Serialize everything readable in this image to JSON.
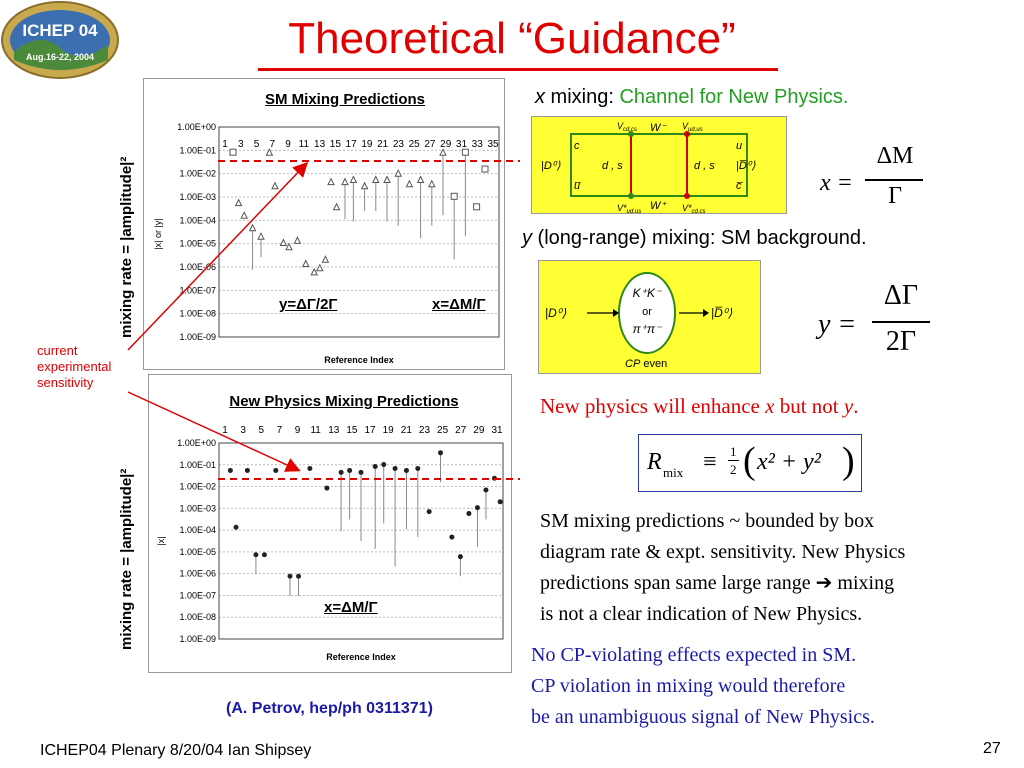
{
  "slide": {
    "title": "Theoretical “Guidance”",
    "logo_text": "ICHEP 04",
    "logo_date": "Aug.16-22, 2004",
    "footer_left": "ICHEP04 Plenary 8/20/04 Ian Shipsey",
    "page_number": "27",
    "citation": "(A. Petrov, hep/ph 0311371)"
  },
  "plot_top": {
    "title": "SM Mixing Predictions",
    "y_outer_label": "mixing rate = |amplitude|²",
    "y_inner_label": "|x| or |y|",
    "x_label": "Reference Index",
    "y_ticks": [
      "1.00E+00",
      "1.00E-01",
      "1.00E-02",
      "1.00E-03",
      "1.00E-04",
      "1.00E-05",
      "1.00E-06",
      "1.00E-07",
      "1.00E-08",
      "1.00E-09"
    ],
    "x_ticks": [
      "1",
      "3",
      "5",
      "7",
      "9",
      "11",
      "13",
      "15",
      "17",
      "19",
      "21",
      "23",
      "25",
      "27",
      "29",
      "31",
      "33",
      "35"
    ],
    "label_y": "y=ΔΓ/2Γ",
    "label_x": "x=ΔM/Γ"
  },
  "plot_bottom": {
    "title": "New Physics Mixing Predictions",
    "y_outer_label": "mixing rate = |amplitude|²",
    "y_inner_label": "|x|",
    "x_label": "Reference Index",
    "y_ticks": [
      "1.00E+00",
      "1.00E-01",
      "1.00E-02",
      "1.00E-03",
      "1.00E-04",
      "1.00E-05",
      "1.00E-06",
      "1.00E-07",
      "1.00E-08",
      "1.00E-09"
    ],
    "x_ticks": [
      "1",
      "3",
      "5",
      "7",
      "9",
      "11",
      "13",
      "15",
      "17",
      "19",
      "21",
      "23",
      "25",
      "27",
      "29",
      "31"
    ],
    "label_x": "x=ΔM/Γ"
  },
  "sensitivity_note": [
    "current",
    "experimental",
    "sensitivity"
  ],
  "x_mixing": {
    "label_var": "x",
    "label_mid": " mixing: ",
    "label_rest": "Channel for New Physics.",
    "eq_lhs": "x =",
    "eq_num": "ΔM",
    "eq_den": "Γ"
  },
  "box_diagram": {
    "vcd_top": "V",
    "w_top": "W⁻",
    "w_bottom": "W⁺",
    "d0": "|D⁰⟩",
    "d0bar": "|D̅⁰⟩",
    "q_c": "c",
    "q_ubar": "u̅",
    "q_u": "u",
    "q_cbar": "c̅",
    "ds": "d , s"
  },
  "y_mixing": {
    "label_var": "y",
    "label_rest": " (long-range) mixing: SM background.",
    "eq_lhs": "y =",
    "eq_num": "ΔΓ",
    "eq_den": "2Γ"
  },
  "cp_diagram": {
    "d0": "|D⁰⟩",
    "d0bar": "|D̅⁰⟩",
    "kk": "K⁺K⁻",
    "or": "or",
    "pipi": "π⁺π⁻",
    "cp": "CP",
    "even": " even"
  },
  "np_statement": {
    "text_a": "New physics will enhance ",
    "x": "x",
    "text_b": " but not ",
    "y": "y",
    "text_c": "."
  },
  "rmix": {
    "lhs": "R",
    "sub": "mix",
    "equiv": "≡",
    "half_num": "1",
    "half_den": "2",
    "body": "x² + y²"
  },
  "paragraph_sm": [
    "SM mixing predictions ~ bounded by box",
    "diagram rate & expt. sensitivity. New Physics",
    "predictions span same large range ➔ mixing",
    "is not a clear indication of New Physics."
  ],
  "paragraph_cp": [
    "No CP-violating effects expected in SM.",
    "CP violation in mixing would therefore",
    "be an unambiguous signal of  New Physics."
  ],
  "colors": {
    "title": "#e00000",
    "box_bg": "#ffff33",
    "green": "#2d8a1a",
    "blue_text": "#1a1aa6",
    "red": "#e00000"
  }
}
